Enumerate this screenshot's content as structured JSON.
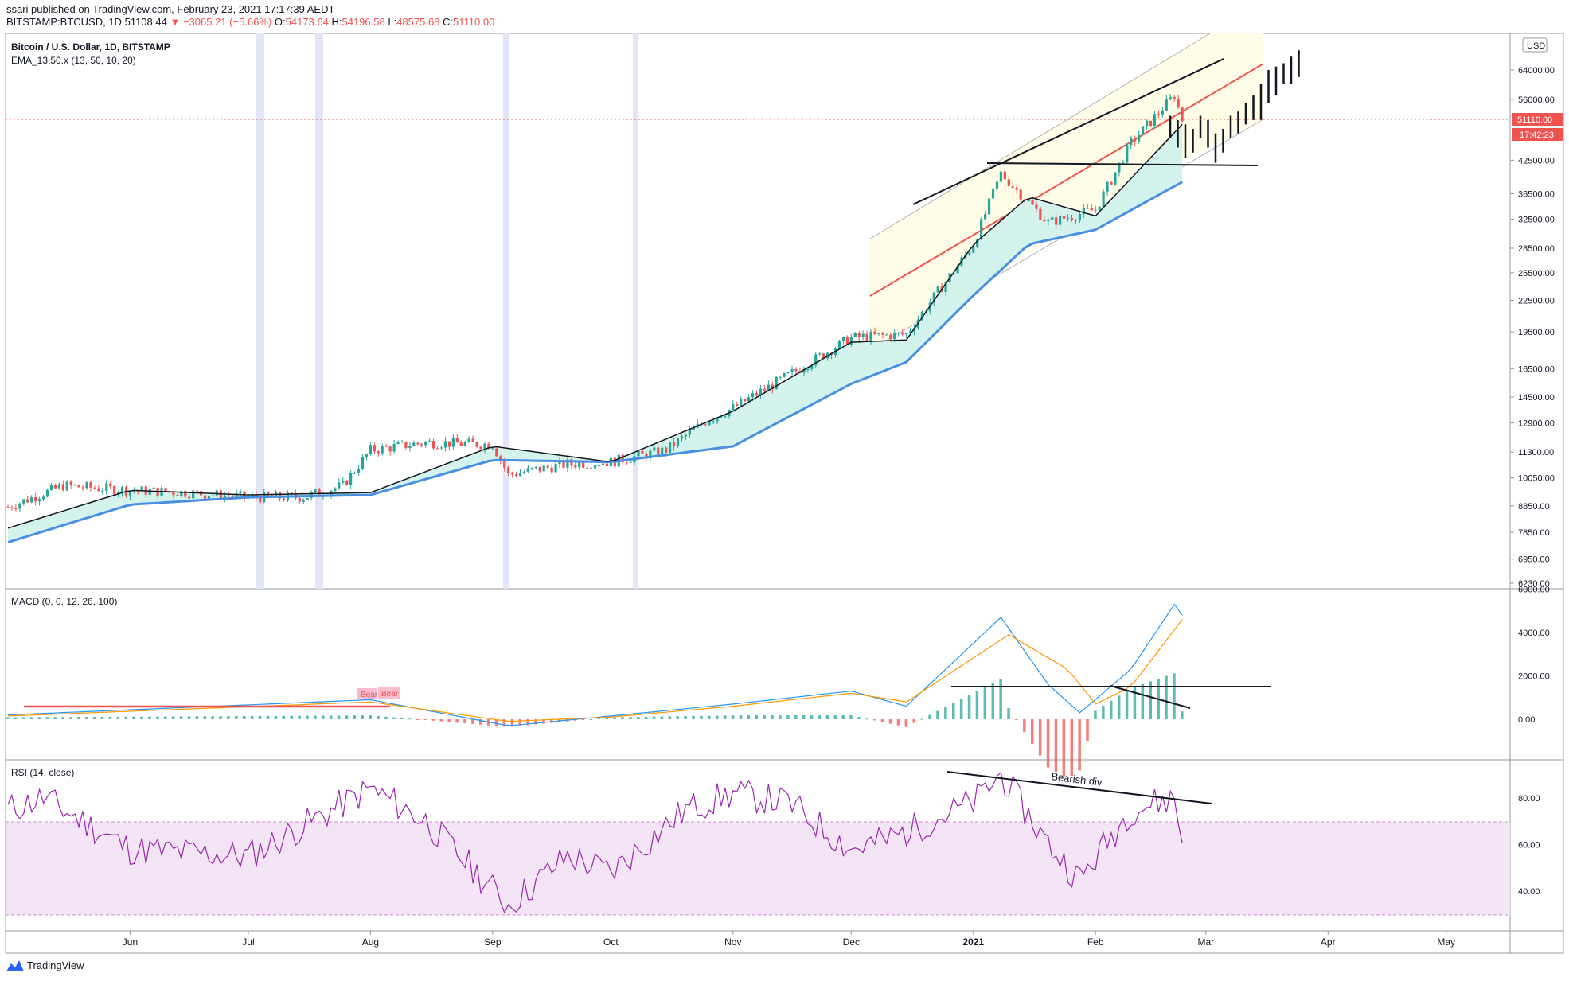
{
  "header": {
    "published": "ssari published on TradingView.com, February 23, 2021 17:17:39 AEDT",
    "symbol": "BITSTAMP:BTCUSD, 1D",
    "last": "51108.44",
    "change": "▼ −3065.21 (−5.66%)",
    "open_label": "O:",
    "open": "54173.64",
    "high_label": "H:",
    "high": "54196.58",
    "low_label": "L:",
    "low": "48575.68",
    "close_label": "C:",
    "close": "51110.00"
  },
  "legend": {
    "title": "Bitcoin / U.S. Dollar, 1D, BITSTAMP",
    "ema": "EMA_13.50.x (13, 50, 10, 20)",
    "macd": "MACD (0, 0, 12, 26, 100)",
    "rsi": "RSI (14, close)"
  },
  "currency": "USD",
  "price_badge": "51110.00",
  "countdown_badge": "17:42:23",
  "annotations": {
    "bearish_div": "Bearish div",
    "bear1": "Bear",
    "bear2": "Bear"
  },
  "footer": {
    "brand": "TradingView"
  },
  "colors": {
    "up": "#26a69a",
    "down": "#ef5350",
    "ema_fast": "#131722",
    "ema_slow": "#4a90e2",
    "macd_line": "#2196f3",
    "signal_line": "#ff9800",
    "rsi_line": "#9c27b0",
    "rsi_band": "#f3e5f5",
    "channel_fill": "#fffde7",
    "ema_fill": "#d4f3ec",
    "session_band": "#e3e6fa"
  },
  "chart_data": [
    {
      "type": "candlestick",
      "title": "Bitcoin / U.S. Dollar, 1D, BITSTAMP",
      "x_ticks": [
        "Jun",
        "Jul",
        "Aug",
        "Sep",
        "Oct",
        "Nov",
        "Dec",
        "2021",
        "Feb",
        "Mar",
        "Apr",
        "May"
      ],
      "y_ticks": [
        6230,
        6950,
        7850,
        8850,
        10050,
        11300,
        12900,
        14500,
        16500,
        19500,
        22500,
        25500,
        28500,
        32500,
        36500,
        42500,
        56000,
        64000
      ],
      "scale": "log",
      "ylim": [
        6230,
        73000
      ],
      "series": [
        {
          "name": "close",
          "x": [
            "2020-05-01",
            "2020-05-15",
            "2020-06-01",
            "2020-06-15",
            "2020-07-01",
            "2020-07-15",
            "2020-07-25",
            "2020-08-01",
            "2020-08-15",
            "2020-09-01",
            "2020-09-05",
            "2020-09-20",
            "2020-10-01",
            "2020-10-15",
            "2020-10-25",
            "2020-11-01",
            "2020-11-15",
            "2020-12-01",
            "2020-12-15",
            "2021-01-01",
            "2021-01-08",
            "2021-01-20",
            "2021-02-01",
            "2021-02-10",
            "2021-02-21",
            "2021-02-23"
          ],
          "values": [
            8800,
            9700,
            9500,
            9400,
            9200,
            9200,
            9700,
            11400,
            11800,
            11700,
            10200,
            10700,
            10800,
            11400,
            13000,
            13800,
            16000,
            19000,
            19300,
            29000,
            40000,
            32000,
            34000,
            46000,
            57000,
            51110
          ]
        },
        {
          "name": "EMA 13",
          "x": [
            "2020-05-01",
            "2020-06-01",
            "2020-07-01",
            "2020-08-01",
            "2020-09-01",
            "2020-10-01",
            "2020-11-01",
            "2020-12-01",
            "2020-12-15",
            "2021-01-01",
            "2021-01-15",
            "2021-02-01",
            "2021-02-23"
          ],
          "values": [
            8000,
            9500,
            9300,
            9400,
            11600,
            10800,
            13600,
            18600,
            18800,
            29000,
            36000,
            33000,
            50000
          ]
        },
        {
          "name": "EMA 50",
          "x": [
            "2020-05-01",
            "2020-06-01",
            "2020-07-01",
            "2020-08-01",
            "2020-09-01",
            "2020-10-01",
            "2020-11-01",
            "2020-12-01",
            "2020-12-15",
            "2021-01-01",
            "2021-01-15",
            "2021-02-01",
            "2021-02-23"
          ],
          "values": [
            7500,
            8900,
            9200,
            9300,
            10900,
            10800,
            11600,
            15400,
            17000,
            23000,
            29000,
            31000,
            38500
          ]
        }
      ]
    },
    {
      "type": "line",
      "title": "MACD (0, 0, 12, 26, 100)",
      "y_ticks": [
        0,
        2000,
        4000,
        6000
      ],
      "ylim": [
        -1000,
        6000
      ],
      "series": [
        {
          "name": "MACD",
          "x": [
            "2020-05-01",
            "2020-08-01",
            "2020-09-05",
            "2020-10-01",
            "2020-11-01",
            "2020-12-01",
            "2020-12-15",
            "2021-01-08",
            "2021-01-20",
            "2021-01-28",
            "2021-02-10",
            "2021-02-21",
            "2021-02-23"
          ],
          "values": [
            200,
            900,
            -300,
            150,
            700,
            1300,
            600,
            4700,
            1600,
            300,
            2300,
            5300,
            4800
          ]
        },
        {
          "name": "Signal",
          "x": [
            "2020-05-01",
            "2020-08-01",
            "2020-09-05",
            "2020-10-01",
            "2020-11-01",
            "2020-12-01",
            "2020-12-15",
            "2021-01-10",
            "2021-01-25",
            "2021-02-01",
            "2021-02-10",
            "2021-02-23"
          ],
          "values": [
            150,
            800,
            -100,
            100,
            600,
            1200,
            800,
            3900,
            2300,
            700,
            1500,
            4600
          ]
        }
      ]
    },
    {
      "type": "line",
      "title": "RSI (14, close)",
      "y_ticks": [
        40,
        60,
        80
      ],
      "ylim": [
        25,
        95
      ],
      "series": [
        {
          "name": "RSI",
          "x": [
            "2020-05-01",
            "2020-05-10",
            "2020-06-01",
            "2020-07-01",
            "2020-08-01",
            "2020-08-15",
            "2020-09-05",
            "2020-09-20",
            "2020-10-01",
            "2020-10-20",
            "2020-11-01",
            "2020-11-15",
            "2020-12-01",
            "2020-12-10",
            "2021-01-01",
            "2021-01-08",
            "2021-01-20",
            "2021-01-28",
            "2021-02-10",
            "2021-02-21",
            "2021-02-23"
          ],
          "values": [
            75,
            80,
            58,
            55,
            84,
            70,
            34,
            55,
            48,
            75,
            82,
            78,
            58,
            62,
            78,
            90,
            60,
            45,
            75,
            80,
            61
          ]
        }
      ]
    }
  ]
}
